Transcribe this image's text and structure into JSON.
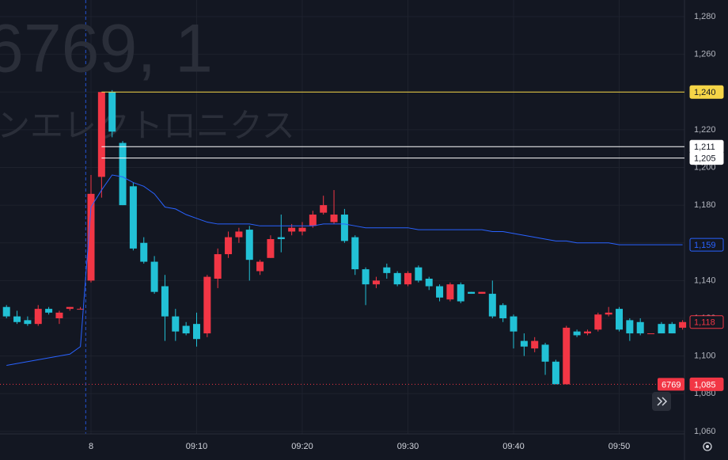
{
  "chart_data": {
    "type": "candlestick",
    "watermark": {
      "symbol": "6769, 1",
      "name": "ンエレクトロニクス"
    },
    "categories": [
      null,
      null,
      null,
      null,
      null,
      null,
      null,
      null,
      "8",
      null,
      null,
      null,
      null,
      null,
      null,
      null,
      null,
      null,
      "09:10",
      null,
      null,
      null,
      null,
      null,
      null,
      null,
      null,
      null,
      "09:20",
      null,
      null,
      null,
      null,
      null,
      null,
      null,
      null,
      null,
      "09:30",
      null,
      null,
      null,
      null,
      null,
      null,
      null,
      null,
      null,
      "09:40",
      null,
      null,
      null,
      null,
      null,
      null,
      null,
      null,
      null,
      "09:50",
      null,
      null,
      null,
      null,
      null,
      null
    ],
    "open": [
      1126,
      1121,
      1119,
      1117,
      1125,
      1120,
      1125,
      1125,
      1140,
      1195,
      1240,
      1213,
      1190,
      1160,
      1150,
      1137,
      1121,
      1116,
      1117,
      1112,
      1141,
      1154,
      1163,
      1167,
      1145,
      1152,
      1163,
      1166,
      1166,
      1169,
      1176,
      1171,
      1175,
      1163,
      1146,
      1138,
      1147,
      1144,
      1138,
      1147,
      1141,
      1137,
      1130,
      1138,
      1134,
      1133,
      1133,
      1127,
      1121,
      1108,
      1104,
      1106,
      1097,
      1085,
      1113,
      1112,
      1114,
      1122,
      1125,
      1119,
      1118,
      1112,
      1117,
      1117,
      1115
    ],
    "high": [
      1127,
      1124,
      1121,
      1127,
      1126,
      1124,
      1126,
      1126,
      1196,
      1240,
      1241,
      1214,
      1192,
      1163,
      1153,
      1143,
      1125,
      1118,
      1123,
      1143,
      1157,
      1166,
      1168,
      1169,
      1151,
      1164,
      1175,
      1170,
      1171,
      1177,
      1185,
      1188,
      1178,
      1164,
      1147,
      1142,
      1149,
      1145,
      1145,
      1148,
      1142,
      1138,
      1139,
      1139,
      1134,
      1134,
      1140,
      1128,
      1122,
      1112,
      1110,
      1107,
      1098,
      1116,
      1114,
      1114,
      1123,
      1126,
      1126,
      1120,
      1120,
      1112,
      1118,
      1118,
      1119
    ],
    "low": [
      1120,
      1117,
      1116,
      1116,
      1122,
      1117,
      1124,
      1125,
      1139,
      1184,
      1216,
      1180,
      1156,
      1149,
      1133,
      1108,
      1108,
      1111,
      1105,
      1110,
      1136,
      1152,
      1160,
      1140,
      1143,
      1152,
      1155,
      1164,
      1164,
      1168,
      1175,
      1170,
      1160,
      1143,
      1127,
      1136,
      1141,
      1137,
      1137,
      1139,
      1135,
      1129,
      1129,
      1128,
      1133,
      1133,
      1120,
      1118,
      1104,
      1100,
      1102,
      1090,
      1085,
      1085,
      1110,
      1111,
      1113,
      1121,
      1113,
      1108,
      1111,
      1112,
      1112,
      1112,
      1114
    ],
    "close": [
      1121,
      1118,
      1117,
      1125,
      1123,
      1123,
      1126,
      1125,
      1186,
      1240,
      1219,
      1180,
      1157,
      1150,
      1134,
      1121,
      1113,
      1112,
      1109,
      1142,
      1154,
      1163,
      1166,
      1151,
      1150,
      1162,
      1162,
      1168,
      1168,
      1175,
      1180,
      1175,
      1161,
      1146,
      1138,
      1140,
      1144,
      1138,
      1144,
      1140,
      1137,
      1131,
      1138,
      1129,
      1133,
      1134,
      1121,
      1120,
      1113,
      1105,
      1108,
      1097,
      1085,
      1115,
      1111,
      1113,
      1122,
      1123,
      1114,
      1112,
      1112,
      1112,
      1112,
      1112,
      1118
    ],
    "up_color": "#f23645",
    "down_color": "#22c1d6",
    "overlay": {
      "color": "#2962ff",
      "values": [
        1095,
        1096,
        1097,
        1098,
        1099,
        1100,
        1101,
        1105,
        1179,
        1188,
        1196,
        1195,
        1192,
        1190,
        1186,
        1179,
        1178,
        1175,
        1173,
        1171,
        1170,
        1170,
        1170,
        1170,
        1169,
        1169,
        1169,
        1169,
        1169,
        1169,
        1170,
        1170,
        1170,
        1169,
        1168,
        1168,
        1168,
        1168,
        1168,
        1167,
        1167,
        1167,
        1167,
        1167,
        1167,
        1167,
        1166,
        1166,
        1165,
        1164,
        1163,
        1162,
        1161,
        1161,
        1160,
        1160,
        1160,
        1160,
        1159,
        1159,
        1159,
        1159,
        1159,
        1159,
        1159
      ],
      "tag": {
        "value": 1159,
        "label": "1,159"
      }
    },
    "close_tag": {
      "value": 1118,
      "label": "1,118"
    },
    "price_lines": [
      {
        "value": 1240,
        "label": "1,240",
        "color": "#f5d547"
      },
      {
        "value": 1211,
        "label": "1,211",
        "color": "#ffffff"
      },
      {
        "value": 1205,
        "label": "1,205",
        "color": "#ffffff"
      }
    ],
    "last_price": {
      "symbol": "6769",
      "value": 1085,
      "label": "1,085",
      "color": "#f23645"
    },
    "ylim": [
      1058.7,
      1288.8
    ],
    "yticks": [
      {
        "value": 1060,
        "label": "1,060"
      },
      {
        "value": 1080,
        "label": "1,080"
      },
      {
        "value": 1100,
        "label": "1,100"
      },
      {
        "value": 1120,
        "label": "1,120"
      },
      {
        "value": 1140,
        "label": "1,140"
      },
      {
        "value": 1160,
        "label": "1,160"
      },
      {
        "value": 1180,
        "label": "1,180"
      },
      {
        "value": 1200,
        "label": "1,200"
      },
      {
        "value": 1220,
        "label": "1,220"
      },
      {
        "value": 1240,
        "label": "1,240"
      },
      {
        "value": 1260,
        "label": "1,260"
      },
      {
        "value": 1280,
        "label": "1,280"
      }
    ],
    "grid": true
  }
}
